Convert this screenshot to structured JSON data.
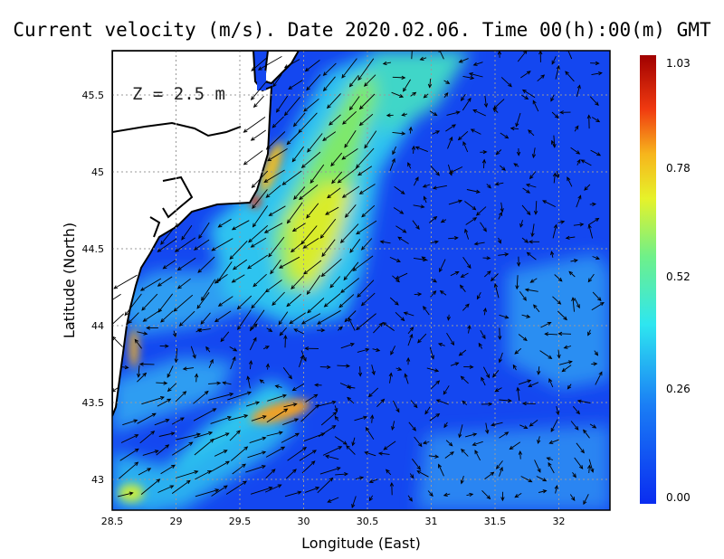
{
  "title": "Current velocity (m/s). Date 2020.02.06. Time 00(h):00(m) GMT",
  "depth_label": "Z = 2.5 m",
  "colors": {
    "low": "#1447f0",
    "mid": "#2ef0d8",
    "high": "#f5e400",
    "max": "#a50000",
    "land": "#ffffff",
    "coast": "#000000"
  },
  "chart_data": {
    "type": "heatmap",
    "xlabel": "Longitude (East)",
    "ylabel": "Latitude (North)",
    "xlim": [
      28.5,
      32.4
    ],
    "ylim": [
      42.8,
      45.8
    ],
    "x_ticks": [
      "28.5",
      "29",
      "29.5",
      "30",
      "30.5",
      "31",
      "31.5",
      "32"
    ],
    "y_ticks": [
      "43",
      "43.5",
      "44",
      "44.5",
      "45",
      "45.5"
    ],
    "colorbar": {
      "min": 0.0,
      "max": 1.03,
      "labels": [
        "1.03",
        "0.78",
        "0.52",
        "0.26",
        "0.00"
      ]
    },
    "grid": true,
    "field": "current velocity vectors over speed shading"
  }
}
